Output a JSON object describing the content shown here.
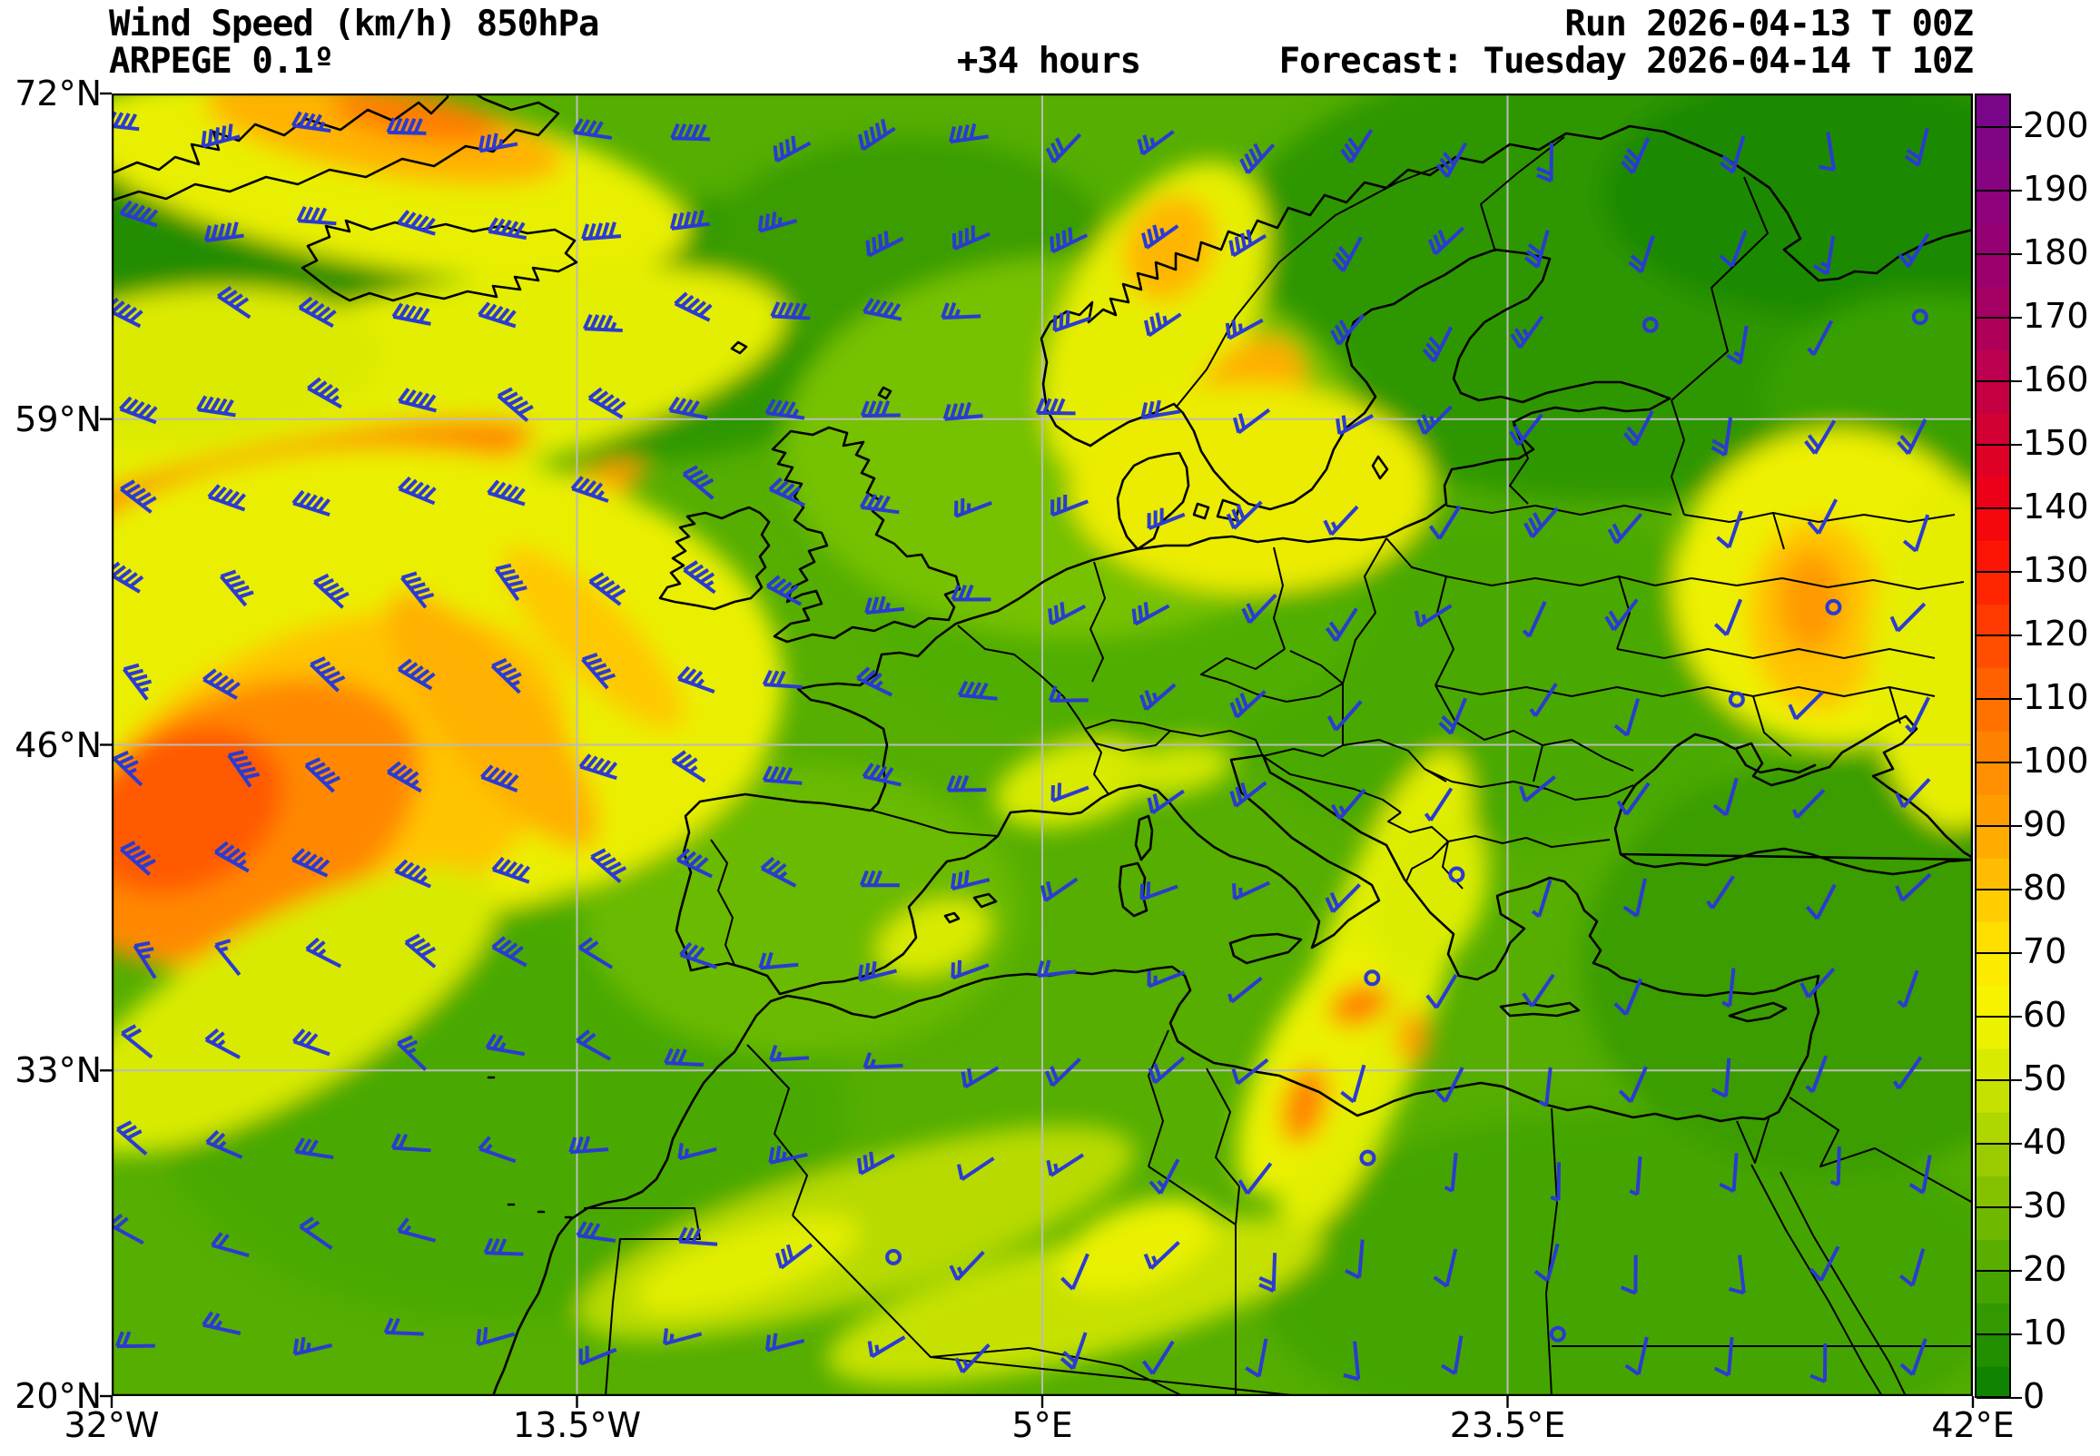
{
  "header": {
    "title_line1": "Wind Speed (km/h) 850hPa",
    "title_line2": "ARPEGE 0.1º",
    "lead_time": "+34 hours",
    "run": "Run 2026-04-13 T 00Z",
    "forecast": "Forecast: Tuesday 2026-04-14 T 10Z"
  },
  "axes": {
    "lat_labels": [
      "72°N",
      "59°N",
      "46°N",
      "33°N",
      "20°N"
    ],
    "lon_labels": [
      "32°W",
      "13.5°W",
      "5°E",
      "23.5°E",
      "42°E"
    ]
  },
  "map": {
    "extent": {
      "lon_min": -32,
      "lon_max": 42,
      "lat_min": 20,
      "lat_max": 72
    },
    "base_color": "#55ae00",
    "grid_color": "#bbbbbb",
    "coast_color": "#000000"
  },
  "colorbar": {
    "units": "km/h",
    "min": 0,
    "max": 205,
    "segment_step": 5,
    "tick_step": 10,
    "ticks": [
      "0",
      "10",
      "20",
      "30",
      "40",
      "50",
      "60",
      "70",
      "80",
      "90",
      "100",
      "110",
      "120",
      "130",
      "140",
      "150",
      "160",
      "170",
      "180",
      "190",
      "200"
    ],
    "stops": [
      {
        "v": 0,
        "c": "#077e00"
      },
      {
        "v": 10,
        "c": "#2a9400"
      },
      {
        "v": 20,
        "c": "#4fa900"
      },
      {
        "v": 30,
        "c": "#79bd00"
      },
      {
        "v": 40,
        "c": "#a3d000"
      },
      {
        "v": 50,
        "c": "#cfe600"
      },
      {
        "v": 60,
        "c": "#f4f600"
      },
      {
        "v": 70,
        "c": "#ffe700"
      },
      {
        "v": 80,
        "c": "#ffc400"
      },
      {
        "v": 90,
        "c": "#ffa200"
      },
      {
        "v": 100,
        "c": "#ff8800"
      },
      {
        "v": 110,
        "c": "#ff6a00"
      },
      {
        "v": 120,
        "c": "#ff4500"
      },
      {
        "v": 130,
        "c": "#ff1a00"
      },
      {
        "v": 140,
        "c": "#f30010"
      },
      {
        "v": 150,
        "c": "#d8002c"
      },
      {
        "v": 160,
        "c": "#bf0049"
      },
      {
        "v": 170,
        "c": "#a9005e"
      },
      {
        "v": 180,
        "c": "#980070"
      },
      {
        "v": 190,
        "c": "#8a0380"
      },
      {
        "v": 200,
        "c": "#7b0687"
      },
      {
        "v": 205,
        "c": "#770689"
      }
    ]
  },
  "wind_barbs": {
    "color": "#2b3bd1",
    "cols": 20,
    "rows": 14,
    "seed": 7
  },
  "field_blobs": [
    [
      150,
      150,
      230,
      130,
      0,
      "#218d00"
    ],
    [
      60,
      320,
      150,
      110,
      0,
      "#2e9700"
    ],
    [
      640,
      260,
      250,
      140,
      -10,
      "#2e9700"
    ],
    [
      880,
      170,
      220,
      120,
      0,
      "#3a9d00"
    ],
    [
      1650,
      200,
      430,
      250,
      0,
      "#2e9700"
    ],
    [
      1900,
      110,
      260,
      140,
      0,
      "#1f8a00"
    ],
    [
      2000,
      340,
      180,
      120,
      0,
      "#37a000"
    ],
    [
      1520,
      640,
      300,
      190,
      0,
      "#49a900"
    ],
    [
      1110,
      540,
      280,
      170,
      0,
      "#4fae00"
    ],
    [
      90,
      590,
      140,
      100,
      -15,
      "#2e9700"
    ],
    [
      430,
      1120,
      380,
      230,
      0,
      "#49a900"
    ],
    [
      1060,
      390,
      320,
      210,
      0,
      "#76c100"
    ],
    [
      1680,
      1310,
      420,
      190,
      0,
      "#45a500"
    ],
    [
      1900,
      960,
      280,
      230,
      0,
      "#3a9d00"
    ],
    [
      760,
      900,
      240,
      160,
      0,
      "#69ba00"
    ],
    [
      300,
      95,
      340,
      95,
      10,
      "#e9ef00"
    ],
    [
      300,
      42,
      200,
      48,
      10,
      "#ffb300"
    ],
    [
      335,
      26,
      95,
      24,
      10,
      "#ff7d00"
    ],
    [
      320,
      330,
      430,
      110,
      -12,
      "#e4ee00"
    ],
    [
      90,
      300,
      210,
      85,
      -5,
      "#dcea00"
    ],
    [
      200,
      425,
      270,
      42,
      -11,
      "#ff8800"
    ],
    [
      70,
      455,
      140,
      28,
      -16,
      "#ff4f00"
    ],
    [
      440,
      475,
      160,
      30,
      -24,
      "#ff9d00"
    ],
    [
      300,
      650,
      440,
      260,
      0,
      "#eaef00"
    ],
    [
      230,
      770,
      290,
      175,
      -25,
      "#ffc400"
    ],
    [
      140,
      800,
      215,
      135,
      -28,
      "#ff8800"
    ],
    [
      80,
      790,
      115,
      85,
      -28,
      "#ff5a00"
    ],
    [
      420,
      690,
      55,
      175,
      -38,
      "#ffb000"
    ],
    [
      530,
      600,
      42,
      135,
      -45,
      "#ffc800"
    ],
    [
      185,
      1010,
      270,
      95,
      -30,
      "#d8ea00"
    ],
    [
      1150,
      250,
      100,
      190,
      27,
      "#e6ee00"
    ],
    [
      1165,
      170,
      48,
      60,
      25,
      "#ffb600"
    ],
    [
      1245,
      360,
      60,
      100,
      28,
      "#ffae00"
    ],
    [
      1262,
      425,
      38,
      60,
      28,
      "#ff8f00"
    ],
    [
      1285,
      445,
      130,
      70,
      -10,
      "#ffc800"
    ],
    [
      1255,
      435,
      200,
      115,
      0,
      "#ebec00"
    ],
    [
      1900,
      545,
      180,
      175,
      0,
      "#edf000"
    ],
    [
      1878,
      575,
      75,
      105,
      0,
      "#ffc300"
    ],
    [
      1872,
      560,
      36,
      55,
      0,
      "#ff9a00"
    ],
    [
      2030,
      620,
      95,
      190,
      0,
      "#e6ee00"
    ],
    [
      1060,
      760,
      90,
      45,
      -15,
      "#d8ea00"
    ],
    [
      1170,
      745,
      65,
      28,
      -10,
      "#cfe600"
    ],
    [
      905,
      930,
      65,
      38,
      -20,
      "#d8ea00"
    ],
    [
      1390,
      990,
      70,
      280,
      18,
      "#e2ee00"
    ],
    [
      1320,
      1075,
      55,
      150,
      25,
      "#eaf100"
    ],
    [
      1452,
      880,
      60,
      90,
      20,
      "#dcec00"
    ],
    [
      1374,
      1004,
      34,
      22,
      -20,
      "#ff8000"
    ],
    [
      1314,
      1114,
      24,
      44,
      15,
      "#ff8400"
    ],
    [
      1434,
      1040,
      18,
      30,
      0,
      "#ff9d00"
    ],
    [
      820,
      1255,
      320,
      75,
      -17,
      "#b8da00"
    ],
    [
      1060,
      1330,
      280,
      65,
      -14,
      "#c6e100"
    ],
    [
      700,
      1290,
      130,
      38,
      -18,
      "#e2ee00"
    ],
    [
      1130,
      1270,
      90,
      45,
      -20,
      "#e9f000"
    ]
  ],
  "chart_data": {
    "type": "heatmap",
    "title": "Wind Speed (km/h) 850hPa",
    "model": "ARPEGE 0.1º",
    "lead_time": "+34 hours",
    "run": "2026-04-13 T 00Z",
    "valid": "Tuesday 2026-04-14 T 10Z",
    "x_ticks": [
      "32°W",
      "13.5°W",
      "5°E",
      "23.5°E",
      "42°E"
    ],
    "y_ticks": [
      "72°N",
      "59°N",
      "46°N",
      "33°N",
      "20°N"
    ],
    "colorbar_ticks": [
      0,
      10,
      20,
      30,
      40,
      50,
      60,
      70,
      80,
      90,
      100,
      110,
      120,
      130,
      140,
      150,
      160,
      170,
      180,
      190,
      200
    ],
    "colorbar_range": [
      0,
      205
    ],
    "units": "km/h",
    "legend_position": "right",
    "grid": true
  }
}
